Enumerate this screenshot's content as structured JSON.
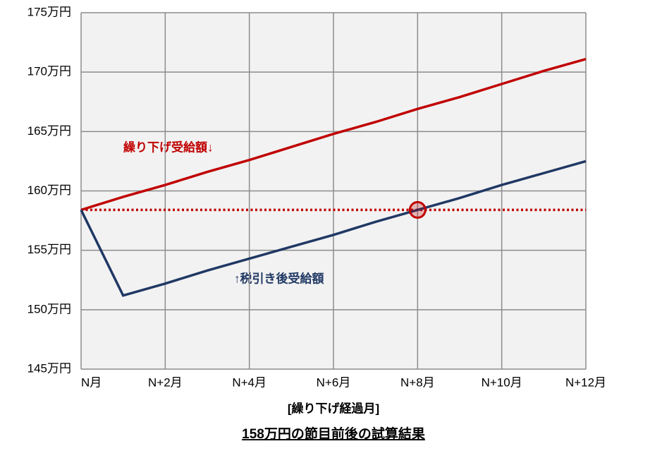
{
  "chart_data": {
    "type": "line",
    "title": "158万円の節目前後の試算結果",
    "x_label": "[繰り下げ経過月]",
    "x": [
      0,
      1,
      2,
      3,
      4,
      5,
      6,
      7,
      8,
      9,
      10,
      11,
      12
    ],
    "series": [
      {
        "name": "繰り下げ受給額↓",
        "color": "#c00000",
        "values": [
          158.4,
          159.5,
          160.5,
          161.6,
          162.6,
          163.7,
          164.8,
          165.8,
          166.9,
          167.9,
          169.0,
          170.1,
          171.1
        ]
      },
      {
        "name": "↑税引き後受給額",
        "color": "#203864",
        "values": [
          158.4,
          151.2,
          152.2,
          153.3,
          154.3,
          155.3,
          156.3,
          157.4,
          158.4,
          159.4,
          160.5,
          161.5,
          162.5
        ]
      }
    ],
    "reference_line": {
      "value": 158.4,
      "color": "#c00000"
    },
    "highlight_point": {
      "x": 8,
      "y": 158.4,
      "color": "#c00000"
    },
    "xlim": [
      0,
      12
    ],
    "xticks": [
      {
        "value": 0,
        "label": "N月"
      },
      {
        "value": 2,
        "label": "N+2月"
      },
      {
        "value": 4,
        "label": "N+4月"
      },
      {
        "value": 6,
        "label": "N+6月"
      },
      {
        "value": 8,
        "label": "N+8月"
      },
      {
        "value": 10,
        "label": "N+10月"
      },
      {
        "value": 12,
        "label": "N+12月"
      }
    ],
    "ylim": [
      145,
      175
    ],
    "yticks": [
      {
        "value": 145,
        "label": "145万円"
      },
      {
        "value": 150,
        "label": "150万円"
      },
      {
        "value": 155,
        "label": "155万円"
      },
      {
        "value": 160,
        "label": "160万円"
      },
      {
        "value": 165,
        "label": "165万円"
      },
      {
        "value": 170,
        "label": "170万円"
      },
      {
        "value": 175,
        "label": "175万円"
      }
    ],
    "grid": true
  }
}
